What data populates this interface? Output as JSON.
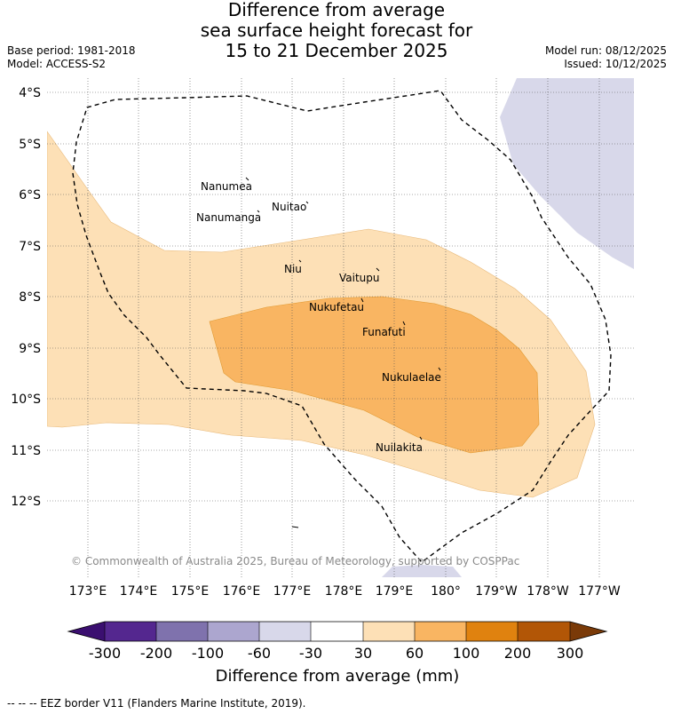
{
  "title": {
    "line1": "Difference from average",
    "line2": "sea surface height forecast for",
    "line3": "15 to 21 December 2025"
  },
  "meta": {
    "base_period": "Base period: 1981-2018",
    "model": "Model: ACCESS-S2",
    "model_run": "Model run: 08/12/2025",
    "issued": "Issued: 10/12/2025"
  },
  "map": {
    "lat_labels": [
      "4°S",
      "5°S",
      "6°S",
      "7°S",
      "8°S",
      "9°S",
      "10°S",
      "11°S",
      "12°S"
    ],
    "lon_labels": [
      "173°E",
      "174°E",
      "175°E",
      "176°E",
      "177°E",
      "178°E",
      "179°E",
      "180°",
      "179°W",
      "178°W",
      "177°W"
    ],
    "islands": [
      "Nanumea",
      "Nuitao",
      "Nanumanga",
      "Niu",
      "Vaitupu",
      "Nukufetau",
      "Funafuti",
      "Nukulaelae",
      "Nuilakita"
    ],
    "copyright": "© Commonwealth of Australia 2025, Bureau of Meteorology, supported by COSPPac",
    "colors": {
      "c30_60": "#fde0b6",
      "c60_100": "#f9b562",
      "cneg60_30": "#d8d8ea",
      "grid": "#555555"
    }
  },
  "colorbar": {
    "ticks": [
      "-300",
      "-200",
      "-100",
      "-60",
      "-30",
      "30",
      "60",
      "100",
      "200",
      "300"
    ],
    "title": "Difference from average (mm)",
    "colors": [
      "#3b0f70",
      "#54278f",
      "#7f72ad",
      "#aca6cf",
      "#d8d8ea",
      "#ffffff",
      "#fde0b6",
      "#f9b562",
      "#e0820f",
      "#b25606",
      "#7a3a08"
    ]
  },
  "footer": "--  --  -- EEZ border V11 (Flanders Marine Institute, 2019)."
}
